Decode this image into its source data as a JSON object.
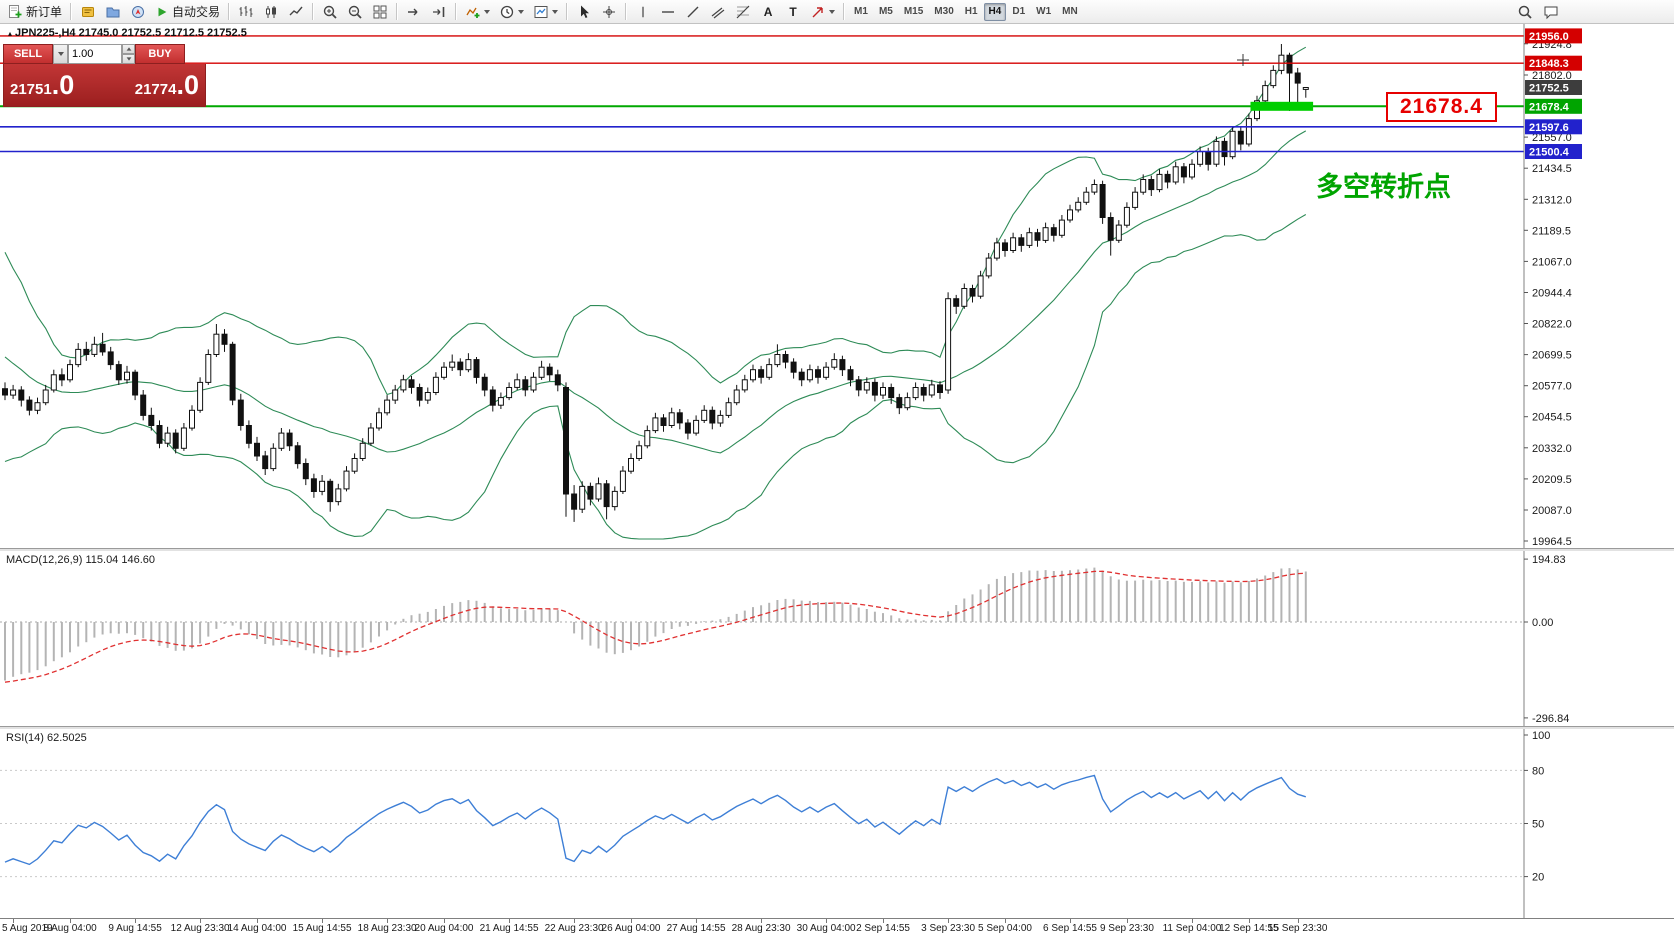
{
  "toolbar": {
    "new_order_label": "新订单",
    "auto_trading_label": "自动交易",
    "text_tool_a": "A",
    "text_tool_t": "T",
    "timeframes": [
      "M1",
      "M5",
      "M15",
      "M30",
      "H1",
      "H4",
      "D1",
      "W1",
      "MN"
    ],
    "active_timeframe": "H4"
  },
  "icons": {
    "symbol_marker": "▴"
  },
  "chart": {
    "symbol_info": "JPN225-,H4  21745.0 21752.5 21712.5 21752.5",
    "trade_widget": {
      "sell_label": "SELL",
      "buy_label": "BUY",
      "volume": "1.00",
      "sell_price_main": "21751",
      "sell_price_frac": ".0",
      "buy_price_main": "21774",
      "buy_price_frac": ".0"
    },
    "annotation": "多空转折点",
    "callout": "21678.4"
  },
  "chart_data": {
    "type": "candlestick",
    "symbol": "JPN225-",
    "timeframe": "H4",
    "last_bar": {
      "open": 21745.0,
      "high": 21752.5,
      "low": 21712.5,
      "close": 21752.5
    },
    "y_axis": {
      "min": 19964.5,
      "max": 21956.0,
      "ticks": [
        21924.8,
        21802.0,
        21557.0,
        21434.5,
        21312.0,
        21189.5,
        21067.0,
        20944.4,
        20822.0,
        20699.5,
        20577.0,
        20454.5,
        20332.0,
        20209.5,
        20087.0,
        19964.5
      ],
      "tags": [
        {
          "value": 21956.0,
          "color": "#d40000"
        },
        {
          "value": 21848.3,
          "color": "#d40000"
        },
        {
          "value": 21752.5,
          "color": "#3d3d3d"
        },
        {
          "value": 21678.4,
          "color": "#00a400"
        },
        {
          "value": 21597.6,
          "color": "#2222cc"
        },
        {
          "value": 21500.4,
          "color": "#2222cc"
        }
      ]
    },
    "h_lines": [
      {
        "value": 21956.0,
        "color": "#d40000",
        "width": 1.4
      },
      {
        "value": 21848.3,
        "color": "#d40000",
        "width": 1.4
      },
      {
        "value": 21678.4,
        "color": "#00a800",
        "width": 2,
        "highlight": {
          "from_idx": 153.2,
          "to_idx": 160.9,
          "color": "#00ce00"
        }
      },
      {
        "value": 21597.6,
        "color": "#2222cc",
        "width": 1.6
      },
      {
        "value": 21500.4,
        "color": "#2222cc",
        "width": 1.6
      }
    ],
    "bollinger": {
      "period": 20,
      "deviation": 2,
      "color": "#2e8b57"
    },
    "pre_closes": [
      21350,
      21280,
      21320,
      21220,
      21150,
      21180,
      21080,
      21010,
      21040,
      20940,
      20860,
      20890,
      20790,
      20700,
      20730,
      20630,
      20560,
      20590,
      20510,
      20460,
      20510,
      20460,
      20510,
      20470,
      20530
    ],
    "ohlc": [
      [
        20565,
        20590,
        20520,
        20540
      ],
      [
        20540,
        20580,
        20525,
        20560
      ],
      [
        20560,
        20575,
        20495,
        20520
      ],
      [
        20520,
        20535,
        20460,
        20480
      ],
      [
        20480,
        20530,
        20465,
        20510
      ],
      [
        20510,
        20580,
        20500,
        20560
      ],
      [
        20560,
        20640,
        20550,
        20620
      ],
      [
        20620,
        20645,
        20575,
        20600
      ],
      [
        20600,
        20680,
        20590,
        20660
      ],
      [
        20660,
        20745,
        20650,
        20720
      ],
      [
        20720,
        20750,
        20675,
        20700
      ],
      [
        20700,
        20770,
        20690,
        20740
      ],
      [
        20740,
        20785,
        20695,
        20710
      ],
      [
        20710,
        20730,
        20640,
        20660
      ],
      [
        20660,
        20675,
        20580,
        20600
      ],
      [
        20600,
        20655,
        20585,
        20630
      ],
      [
        20630,
        20640,
        20520,
        20540
      ],
      [
        20540,
        20560,
        20440,
        20460
      ],
      [
        20460,
        20490,
        20400,
        20420
      ],
      [
        20420,
        20440,
        20330,
        20350
      ],
      [
        20350,
        20415,
        20335,
        20390
      ],
      [
        20390,
        20405,
        20310,
        20330
      ],
      [
        20330,
        20430,
        20320,
        20410
      ],
      [
        20410,
        20500,
        20400,
        20480
      ],
      [
        20480,
        20610,
        20470,
        20590
      ],
      [
        20590,
        20720,
        20580,
        20700
      ],
      [
        20700,
        20820,
        20690,
        20780
      ],
      [
        20780,
        20800,
        20710,
        20740
      ],
      [
        20740,
        20750,
        20500,
        20520
      ],
      [
        20520,
        20545,
        20400,
        20420
      ],
      [
        20420,
        20440,
        20330,
        20350
      ],
      [
        20350,
        20375,
        20280,
        20300
      ],
      [
        20300,
        20320,
        20225,
        20250
      ],
      [
        20250,
        20350,
        20240,
        20330
      ],
      [
        20330,
        20410,
        20320,
        20390
      ],
      [
        20390,
        20405,
        20320,
        20340
      ],
      [
        20340,
        20355,
        20250,
        20270
      ],
      [
        20270,
        20290,
        20185,
        20210
      ],
      [
        20210,
        20230,
        20135,
        20160
      ],
      [
        20160,
        20225,
        20145,
        20200
      ],
      [
        20200,
        20210,
        20080,
        20120
      ],
      [
        20120,
        20190,
        20105,
        20170
      ],
      [
        20170,
        20260,
        20160,
        20240
      ],
      [
        20240,
        20310,
        20230,
        20290
      ],
      [
        20290,
        20370,
        20280,
        20350
      ],
      [
        20350,
        20430,
        20340,
        20410
      ],
      [
        20410,
        20490,
        20400,
        20470
      ],
      [
        20470,
        20540,
        20460,
        20520
      ],
      [
        20520,
        20580,
        20505,
        20560
      ],
      [
        20560,
        20620,
        20550,
        20600
      ],
      [
        20600,
        20615,
        20545,
        20570
      ],
      [
        20570,
        20585,
        20495,
        20520
      ],
      [
        20520,
        20570,
        20505,
        20550
      ],
      [
        20550,
        20630,
        20540,
        20610
      ],
      [
        20610,
        20670,
        20600,
        20650
      ],
      [
        20650,
        20700,
        20635,
        20670
      ],
      [
        20670,
        20685,
        20615,
        20640
      ],
      [
        20640,
        20705,
        20630,
        20680
      ],
      [
        20680,
        20690,
        20585,
        20610
      ],
      [
        20610,
        20625,
        20535,
        20560
      ],
      [
        20560,
        20575,
        20475,
        20500
      ],
      [
        20500,
        20550,
        20485,
        20530
      ],
      [
        20530,
        20590,
        20520,
        20570
      ],
      [
        20570,
        20625,
        20560,
        20600
      ],
      [
        20600,
        20615,
        20535,
        20560
      ],
      [
        20560,
        20630,
        20550,
        20610
      ],
      [
        20610,
        20675,
        20600,
        20650
      ],
      [
        20650,
        20665,
        20595,
        20620
      ],
      [
        20620,
        20640,
        20555,
        20580
      ],
      [
        20570,
        20590,
        20060,
        20150
      ],
      [
        20150,
        20185,
        20040,
        20090
      ],
      [
        20090,
        20200,
        20075,
        20180
      ],
      [
        20180,
        20195,
        20105,
        20130
      ],
      [
        20130,
        20215,
        20120,
        20190
      ],
      [
        20190,
        20205,
        20050,
        20100
      ],
      [
        20100,
        20180,
        20085,
        20160
      ],
      [
        20160,
        20260,
        20150,
        20240
      ],
      [
        20240,
        20310,
        20230,
        20290
      ],
      [
        20290,
        20360,
        20280,
        20340
      ],
      [
        20340,
        20420,
        20330,
        20400
      ],
      [
        20400,
        20470,
        20390,
        20450
      ],
      [
        20450,
        20465,
        20395,
        20420
      ],
      [
        20420,
        20490,
        20410,
        20470
      ],
      [
        20470,
        20485,
        20405,
        20430
      ],
      [
        20430,
        20445,
        20365,
        20390
      ],
      [
        20390,
        20460,
        20380,
        20440
      ],
      [
        20440,
        20500,
        20430,
        20480
      ],
      [
        20480,
        20495,
        20405,
        20430
      ],
      [
        20430,
        20480,
        20415,
        20460
      ],
      [
        20460,
        20530,
        20450,
        20510
      ],
      [
        20510,
        20580,
        20500,
        20560
      ],
      [
        20560,
        20620,
        20550,
        20600
      ],
      [
        20600,
        20660,
        20590,
        20640
      ],
      [
        20640,
        20655,
        20585,
        20610
      ],
      [
        20610,
        20685,
        20600,
        20660
      ],
      [
        20660,
        20740,
        20650,
        20700
      ],
      [
        20700,
        20715,
        20645,
        20670
      ],
      [
        20670,
        20685,
        20605,
        20630
      ],
      [
        20630,
        20645,
        20575,
        20600
      ],
      [
        20600,
        20660,
        20590,
        20640
      ],
      [
        20640,
        20655,
        20585,
        20610
      ],
      [
        20610,
        20670,
        20600,
        20650
      ],
      [
        20650,
        20705,
        20640,
        20680
      ],
      [
        20680,
        20695,
        20615,
        20640
      ],
      [
        20640,
        20655,
        20575,
        20600
      ],
      [
        20600,
        20615,
        20535,
        20560
      ],
      [
        20560,
        20610,
        20545,
        20590
      ],
      [
        20590,
        20605,
        20515,
        20540
      ],
      [
        20540,
        20590,
        20525,
        20570
      ],
      [
        20570,
        20585,
        20505,
        20530
      ],
      [
        20530,
        20545,
        20465,
        20490
      ],
      [
        20490,
        20550,
        20480,
        20530
      ],
      [
        20530,
        20590,
        20520,
        20570
      ],
      [
        20570,
        20585,
        20515,
        20540
      ],
      [
        20540,
        20600,
        20530,
        20580
      ],
      [
        20580,
        20595,
        20525,
        20550
      ],
      [
        20560,
        20945,
        20545,
        20920
      ],
      [
        20920,
        20935,
        20860,
        20890
      ],
      [
        20890,
        20980,
        20880,
        20960
      ],
      [
        20960,
        20975,
        20905,
        20930
      ],
      [
        20930,
        21030,
        20920,
        21010
      ],
      [
        21010,
        21100,
        21000,
        21080
      ],
      [
        21080,
        21160,
        21070,
        21140
      ],
      [
        21140,
        21155,
        21085,
        21110
      ],
      [
        21110,
        21180,
        21100,
        21160
      ],
      [
        21160,
        21175,
        21105,
        21130
      ],
      [
        21130,
        21200,
        21120,
        21180
      ],
      [
        21180,
        21195,
        21125,
        21150
      ],
      [
        21150,
        21220,
        21140,
        21200
      ],
      [
        21200,
        21215,
        21145,
        21170
      ],
      [
        21170,
        21250,
        21160,
        21230
      ],
      [
        21230,
        21290,
        21220,
        21270
      ],
      [
        21270,
        21320,
        21260,
        21300
      ],
      [
        21300,
        21360,
        21290,
        21340
      ],
      [
        21340,
        21390,
        21330,
        21370
      ],
      [
        21370,
        21385,
        21215,
        21240
      ],
      [
        21240,
        21260,
        21090,
        21150
      ],
      [
        21150,
        21230,
        21140,
        21210
      ],
      [
        21210,
        21300,
        21200,
        21280
      ],
      [
        21280,
        21360,
        21270,
        21340
      ],
      [
        21340,
        21410,
        21330,
        21390
      ],
      [
        21390,
        21405,
        21325,
        21350
      ],
      [
        21350,
        21430,
        21340,
        21410
      ],
      [
        21410,
        21425,
        21355,
        21380
      ],
      [
        21380,
        21460,
        21370,
        21440
      ],
      [
        21440,
        21455,
        21375,
        21400
      ],
      [
        21400,
        21470,
        21390,
        21450
      ],
      [
        21450,
        21520,
        21440,
        21500
      ],
      [
        21500,
        21515,
        21425,
        21450
      ],
      [
        21450,
        21560,
        21440,
        21540
      ],
      [
        21540,
        21555,
        21445,
        21480
      ],
      [
        21480,
        21600,
        21470,
        21580
      ],
      [
        21580,
        21595,
        21505,
        21530
      ],
      [
        21530,
        21650,
        21520,
        21630
      ],
      [
        21630,
        21720,
        21620,
        21700
      ],
      [
        21700,
        21780,
        21690,
        21760
      ],
      [
        21760,
        21840,
        21750,
        21820
      ],
      [
        21820,
        21924,
        21805,
        21880
      ],
      [
        21880,
        21890,
        21660,
        21810
      ],
      [
        21810,
        21830,
        21680,
        21770
      ],
      [
        21745,
        21752.5,
        21712.5,
        21752.5
      ]
    ],
    "x_labels": [
      {
        "i": 1,
        "t": "5 Aug 2019"
      },
      {
        "i": 8,
        "t": "8 Aug 04:00"
      },
      {
        "i": 16,
        "t": "9 Aug 14:55"
      },
      {
        "i": 24,
        "t": "12 Aug 23:30"
      },
      {
        "i": 31,
        "t": "14 Aug 04:00"
      },
      {
        "i": 39,
        "t": "15 Aug 14:55"
      },
      {
        "i": 47,
        "t": "18 Aug 23:30"
      },
      {
        "i": 54,
        "t": "20 Aug 04:00"
      },
      {
        "i": 62,
        "t": "21 Aug 14:55"
      },
      {
        "i": 70,
        "t": "22 Aug 23:30"
      },
      {
        "i": 77,
        "t": "26 Aug 04:00"
      },
      {
        "i": 85,
        "t": "27 Aug 14:55"
      },
      {
        "i": 93,
        "t": "28 Aug 23:30"
      },
      {
        "i": 101,
        "t": "30 Aug 04:00"
      },
      {
        "i": 108,
        "t": "2 Sep 14:55"
      },
      {
        "i": 116,
        "t": "3 Sep 23:30"
      },
      {
        "i": 123,
        "t": "5 Sep 04:00"
      },
      {
        "i": 131,
        "t": "6 Sep 14:55"
      },
      {
        "i": 138,
        "t": "9 Sep 23:30"
      },
      {
        "i": 146,
        "t": "11 Sep 04:00"
      },
      {
        "i": 153,
        "t": "12 Sep 14:55"
      },
      {
        "i": 159,
        "t": "15 Sep 23:30"
      }
    ],
    "indicators": [
      {
        "name": "MACD",
        "label": "MACD(12,26,9) 115.04 146.60",
        "fast": 12,
        "slow": 26,
        "signal": 9,
        "scale_ticks": [
          194.83,
          0,
          -296.84
        ],
        "range": [
          -296.84,
          194.83
        ],
        "histogram_color": "#b4b4b4",
        "signal_color": "#e03131"
      },
      {
        "name": "RSI",
        "label": "RSI(14) 62.5025",
        "period": 14,
        "scale_ticks": [
          100,
          80,
          50,
          20
        ],
        "levels": [
          80,
          50,
          20
        ],
        "line_color": "#3e7fd6"
      }
    ]
  }
}
